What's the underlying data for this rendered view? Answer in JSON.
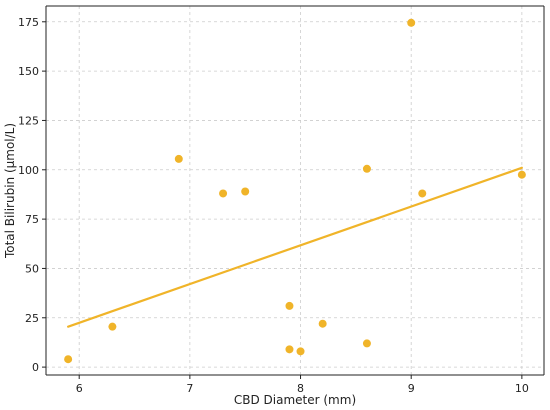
{
  "chart_data": {
    "type": "scatter",
    "title": "",
    "xlabel": "CBD Diameter (mm)",
    "ylabel": "Total Bilirubin (μmol/L)",
    "xlim": [
      5.7,
      10.2
    ],
    "ylim": [
      -4,
      183
    ],
    "xticks": [
      6,
      7,
      8,
      9,
      10
    ],
    "yticks": [
      0,
      25,
      50,
      75,
      100,
      125,
      150,
      175
    ],
    "xtick_labels": [
      "6",
      "7",
      "8",
      "9",
      "10"
    ],
    "ytick_labels": [
      "0",
      "25",
      "50",
      "75",
      "100",
      "125",
      "150",
      "175"
    ],
    "grid": true,
    "point_color": "#f0b429",
    "points": [
      {
        "x": 5.9,
        "y": 4
      },
      {
        "x": 6.3,
        "y": 20.5
      },
      {
        "x": 6.9,
        "y": 105.5
      },
      {
        "x": 7.3,
        "y": 88
      },
      {
        "x": 7.5,
        "y": 89
      },
      {
        "x": 7.9,
        "y": 31
      },
      {
        "x": 7.9,
        "y": 9
      },
      {
        "x": 8.0,
        "y": 8
      },
      {
        "x": 8.2,
        "y": 22
      },
      {
        "x": 8.6,
        "y": 100.5
      },
      {
        "x": 8.6,
        "y": 12
      },
      {
        "x": 9.0,
        "y": 174.5
      },
      {
        "x": 9.1,
        "y": 88
      },
      {
        "x": 10.0,
        "y": 97.5
      }
    ],
    "trend_line": {
      "color": "#f0b429",
      "x": [
        5.9,
        10.0
      ],
      "y": [
        20.5,
        101
      ]
    }
  }
}
